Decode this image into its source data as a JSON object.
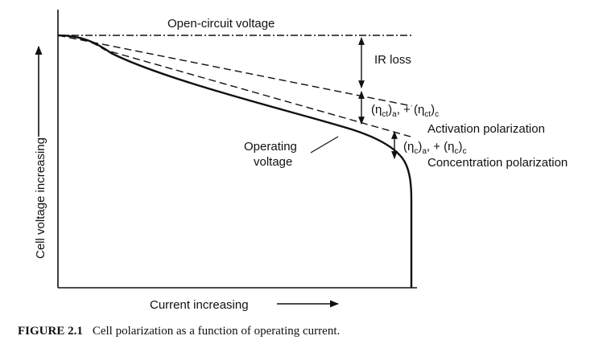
{
  "diagram": {
    "y_axis_label": "Cell voltage increasing",
    "x_axis_label": "Current increasing",
    "open_circuit_label": "Open-circuit voltage",
    "ir_loss_label": "IR loss",
    "activation": {
      "open_paren_1": "(η",
      "sub_1": "ct",
      "close_1": ")",
      "sub_2": "a",
      "mid": ", + (η",
      "sub_3": "ct",
      "close_2": ")",
      "sub_4": "c",
      "label": "Activation polarization"
    },
    "concentration": {
      "open_paren_1": "(η",
      "sub_1": "c",
      "close_1": ")",
      "sub_2": "a",
      "mid": ", + (η",
      "sub_3": "c",
      "close_2": ")",
      "sub_4": "c",
      "label": "Concentration polarization"
    },
    "operating_line1": "Operating",
    "operating_line2": "voltage"
  },
  "caption": {
    "figure_label": "FIGURE 2.1",
    "text": "Cell polarization as a function of operating current."
  }
}
